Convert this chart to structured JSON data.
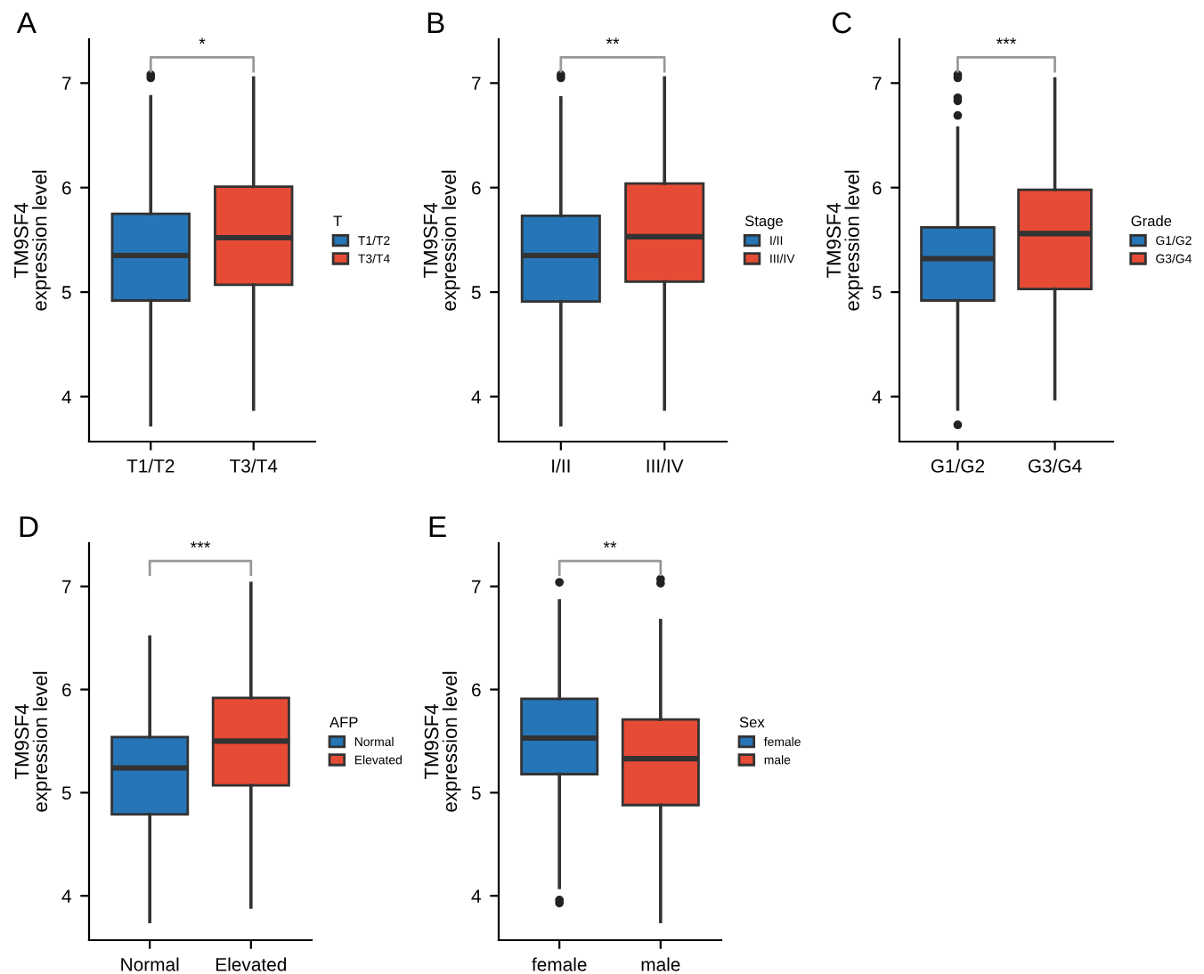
{
  "chart_data": [
    {
      "type": "box",
      "title": "A",
      "ylabel": "TM9SF4\nexpression level",
      "legend_title": "T",
      "legend": "right",
      "categories": [
        "T1/T2",
        "T3/T4"
      ],
      "ylim": [
        3.57,
        7.42
      ],
      "yticks": [
        4,
        5,
        6,
        7
      ],
      "annotations": [
        "*"
      ],
      "series": [
        {
          "name": "T1/T2",
          "color": "#2575b7",
          "boxes": [
            {
              "low": 3.73,
              "q1": 4.92,
              "median": 5.35,
              "q3": 5.75,
              "high": 6.87,
              "outliers": [
                7.05,
                7.08
              ]
            },
            null
          ]
        },
        {
          "name": "T3/T4",
          "color": "#e64b35",
          "boxes": [
            null,
            {
              "low": 3.88,
              "q1": 5.07,
              "median": 5.52,
              "q3": 6.01,
              "high": 7.05
            }
          ]
        }
      ]
    },
    {
      "type": "box",
      "title": "B",
      "ylabel": "TM9SF4\nexpression level",
      "legend_title": "Stage",
      "legend": "right",
      "categories": [
        "I/II",
        "III/IV"
      ],
      "ylim": [
        3.57,
        7.42
      ],
      "yticks": [
        4,
        5,
        6,
        7
      ],
      "annotations": [
        "**"
      ],
      "series": [
        {
          "name": "I/II",
          "color": "#2575b7",
          "boxes": [
            {
              "low": 3.73,
              "q1": 4.91,
              "median": 5.35,
              "q3": 5.73,
              "high": 6.86,
              "outliers": [
                7.05,
                7.08
              ]
            },
            null
          ]
        },
        {
          "name": "III/IV",
          "color": "#e64b35",
          "boxes": [
            null,
            {
              "low": 3.88,
              "q1": 5.1,
              "median": 5.53,
              "q3": 6.04,
              "high": 7.05
            }
          ]
        }
      ]
    },
    {
      "type": "box",
      "title": "C",
      "ylabel": "TM9SF4\nexpression level",
      "legend_title": "Grade",
      "legend": "right",
      "categories": [
        "G1/G2",
        "G3/G4"
      ],
      "ylim": [
        3.57,
        7.42
      ],
      "yticks": [
        4,
        5,
        6,
        7
      ],
      "annotations": [
        "***"
      ],
      "series": [
        {
          "name": "G1/G2",
          "color": "#2575b7",
          "boxes": [
            {
              "low": 3.88,
              "q1": 4.92,
              "median": 5.32,
              "q3": 5.62,
              "high": 6.57,
              "outliers": [
                3.73,
                6.69,
                6.83,
                6.86,
                7.05,
                7.08
              ]
            },
            null
          ]
        },
        {
          "name": "G3/G4",
          "color": "#e64b35",
          "boxes": [
            null,
            {
              "low": 3.98,
              "q1": 5.03,
              "median": 5.56,
              "q3": 5.98,
              "high": 7.04
            }
          ]
        }
      ]
    },
    {
      "type": "box",
      "title": "D",
      "ylabel": "TM9SF4\nexpression level",
      "legend_title": "AFP",
      "legend": "right",
      "categories": [
        "Normal",
        "Elevated"
      ],
      "ylim": [
        3.57,
        7.42
      ],
      "yticks": [
        4,
        5,
        6,
        7
      ],
      "annotations": [
        "***"
      ],
      "series": [
        {
          "name": "Normal",
          "color": "#2575b7",
          "boxes": [
            {
              "low": 3.75,
              "q1": 4.79,
              "median": 5.24,
              "q3": 5.54,
              "high": 6.51
            },
            null
          ]
        },
        {
          "name": "Elevated",
          "color": "#e64b35",
          "boxes": [
            null,
            {
              "low": 3.89,
              "q1": 5.07,
              "median": 5.5,
              "q3": 5.92,
              "high": 7.03
            }
          ]
        }
      ]
    },
    {
      "type": "box",
      "title": "E",
      "ylabel": "TM9SF4\nexpression level",
      "legend_title": "Sex",
      "legend": "right",
      "categories": [
        "female",
        "male"
      ],
      "ylim": [
        3.57,
        7.42
      ],
      "yticks": [
        4,
        5,
        6,
        7
      ],
      "annotations": [
        "**"
      ],
      "series": [
        {
          "name": "female",
          "color": "#2575b7",
          "boxes": [
            {
              "low": 4.08,
              "q1": 5.18,
              "median": 5.53,
              "q3": 5.91,
              "high": 6.86,
              "outliers": [
                3.93,
                3.96,
                7.04
              ]
            },
            null
          ]
        },
        {
          "name": "male",
          "color": "#e64b35",
          "boxes": [
            null,
            {
              "low": 3.75,
              "q1": 4.88,
              "median": 5.33,
              "q3": 5.71,
              "high": 6.67,
              "outliers": [
                7.03,
                7.07
              ]
            }
          ]
        }
      ]
    }
  ]
}
